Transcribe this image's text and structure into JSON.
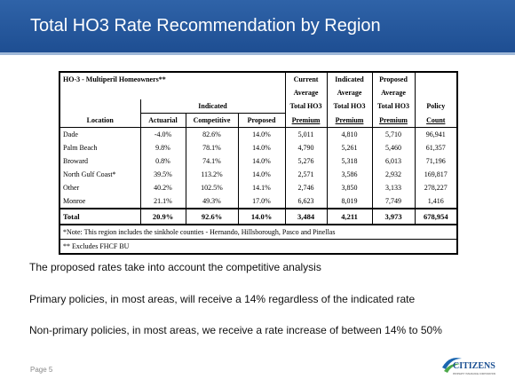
{
  "header": {
    "title": "Total HO3 Rate Recommendation by Region"
  },
  "table": {
    "title": "HO-3 - Multiperil Homeowners**",
    "indicated_group": "Indicated",
    "columns": [
      "Location",
      "Actuarial",
      "Competitive",
      "Proposed"
    ],
    "average_columns": [
      [
        "Current",
        "Average",
        "Total HO3",
        "Premium"
      ],
      [
        "Indicated",
        "Average",
        "Total HO3",
        "Premium"
      ],
      [
        "Proposed",
        "Average",
        "Total HO3",
        "Premium"
      ]
    ],
    "count_column": [
      "Policy",
      "Count"
    ],
    "rows": [
      [
        "Dade",
        "-4.0%",
        "82.6%",
        "14.0%",
        "5,011",
        "4,810",
        "5,710",
        "96,941"
      ],
      [
        "Palm Beach",
        "9.8%",
        "78.1%",
        "14.0%",
        "4,790",
        "5,261",
        "5,460",
        "61,357"
      ],
      [
        "Broward",
        "0.8%",
        "74.1%",
        "14.0%",
        "5,276",
        "5,318",
        "6,013",
        "71,196"
      ],
      [
        "North Gulf Coast*",
        "39.5%",
        "113.2%",
        "14.0%",
        "2,571",
        "3,586",
        "2,932",
        "169,817"
      ],
      [
        "Other",
        "40.2%",
        "102.5%",
        "14.1%",
        "2,746",
        "3,850",
        "3,133",
        "278,227"
      ],
      [
        "Monroe",
        "21.1%",
        "49.3%",
        "17.0%",
        "6,623",
        "8,019",
        "7,749",
        "1,416"
      ]
    ],
    "total": [
      "Total",
      "20.9%",
      "92.6%",
      "14.0%",
      "3,484",
      "4,211",
      "3,973",
      "678,954"
    ],
    "notes": [
      "*Note: This region includes the sinkhole counties - Hernando, Hillsborough, Pasco and Pinellas",
      "** Excludes FHCF BU"
    ]
  },
  "bullets": [
    "The proposed rates take into account the competitive analysis",
    "Primary policies, in most areas, will receive a 14% regardless of the indicated rate",
    "Non-primary policies, in most areas, we receive a rate increase of between 14% to 50%"
  ],
  "footer": {
    "page": "Page 5",
    "logo": "CITIZENS",
    "logo_tagline": "PROPERTY INSURANCE CORPORATION"
  }
}
